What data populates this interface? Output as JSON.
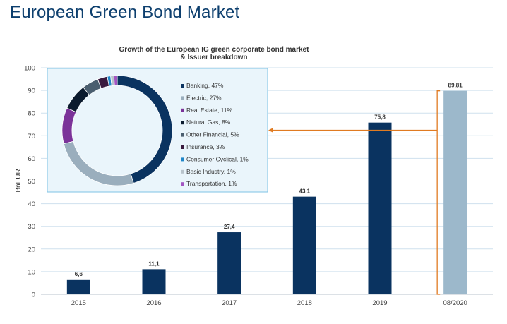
{
  "page": {
    "title": "European Green Bond Market"
  },
  "chart_data": [
    {
      "type": "bar",
      "title": "Growth of the European IG green corporate bond market",
      "subtitle": "& Issuer breakdown",
      "ylabel": "BnEUR",
      "xlabel": "",
      "ylim": [
        0,
        100
      ],
      "yticks": [
        0,
        10,
        20,
        30,
        40,
        50,
        60,
        70,
        80,
        90,
        100
      ],
      "grid": true,
      "categories": [
        "2015",
        "2016",
        "2017",
        "2018",
        "2019",
        "08/2020"
      ],
      "values": [
        6.6,
        11.1,
        27.4,
        43.1,
        75.8,
        89.81
      ],
      "value_labels": [
        "6,6",
        "11,1",
        "27,4",
        "43,1",
        "75,8",
        "89,81"
      ],
      "colors": [
        "#0a3360",
        "#0a3360",
        "#0a3360",
        "#0a3360",
        "#0a3360",
        "#9cb8cb"
      ]
    },
    {
      "type": "pie",
      "style": "donut",
      "legend_position": "right",
      "slices": [
        {
          "label": "Banking, 47%",
          "value": 47,
          "color": "#0a3360"
        },
        {
          "label": "Electric, 27%",
          "value": 27,
          "color": "#9aaebd"
        },
        {
          "label": "Real Estate, 11%",
          "value": 11,
          "color": "#7b3399"
        },
        {
          "label": "Natural Gas, 8%",
          "value": 8,
          "color": "#0b1b2e"
        },
        {
          "label": "Other Financial, 5%",
          "value": 5,
          "color": "#4a5e6f"
        },
        {
          "label": "Insurance, 3%",
          "value": 3,
          "color": "#3a1a3e"
        },
        {
          "label": "Consumer Cyclical, 1%",
          "value": 1,
          "color": "#1f86c8"
        },
        {
          "label": "Basic Industry, 1%",
          "value": 1,
          "color": "#b9c4cc"
        },
        {
          "label": "Transportation, 1%",
          "value": 1,
          "color": "#a356c2"
        }
      ]
    }
  ],
  "colors": {
    "title": "#0d3f6e",
    "arrow": "#e07b22",
    "grid": "#cfe1ee",
    "inset_bg": "#eaf5fb",
    "inset_border": "#7fc3e6"
  }
}
